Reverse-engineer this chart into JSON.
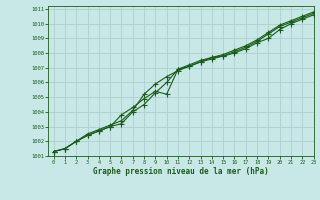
{
  "title": "Graphe pression niveau de la mer (hPa)",
  "background_color": "#c8e8e8",
  "grid_color": "#b0d0d0",
  "line_color": "#1a5c1a",
  "xlim": [
    -0.5,
    23
  ],
  "ylim": [
    1001,
    1011.2
  ],
  "xticks": [
    0,
    1,
    2,
    3,
    4,
    5,
    6,
    7,
    8,
    9,
    10,
    11,
    12,
    13,
    14,
    15,
    16,
    17,
    18,
    19,
    20,
    21,
    22,
    23
  ],
  "yticks": [
    1001,
    1002,
    1003,
    1004,
    1005,
    1006,
    1007,
    1008,
    1009,
    1010,
    1011
  ],
  "series1_x": [
    0,
    1,
    2,
    3,
    4,
    5,
    6,
    7,
    8,
    9,
    10,
    11,
    12,
    13,
    14,
    15,
    16,
    17,
    18,
    19,
    20,
    21,
    22,
    23
  ],
  "series1_y": [
    1001.3,
    1001.5,
    1002.0,
    1002.5,
    1002.8,
    1003.1,
    1003.4,
    1004.1,
    1005.2,
    1005.9,
    1006.4,
    1006.8,
    1007.1,
    1007.4,
    1007.6,
    1007.8,
    1008.1,
    1008.4,
    1008.8,
    1009.3,
    1009.8,
    1010.1,
    1010.4,
    1010.7
  ],
  "series2_x": [
    0,
    1,
    2,
    3,
    4,
    5,
    6,
    7,
    8,
    9,
    10,
    11,
    12,
    13,
    14,
    15,
    16,
    17,
    18,
    19,
    20,
    21,
    22,
    23
  ],
  "series2_y": [
    1001.3,
    1001.5,
    1002.0,
    1002.4,
    1002.7,
    1003.0,
    1003.8,
    1004.3,
    1004.9,
    1005.4,
    1005.2,
    1006.9,
    1007.1,
    1007.4,
    1007.7,
    1007.8,
    1008.0,
    1008.3,
    1008.7,
    1009.0,
    1009.6,
    1010.0,
    1010.3,
    1010.6
  ],
  "series3_x": [
    0,
    1,
    2,
    3,
    4,
    5,
    6,
    7,
    8,
    9,
    10,
    11,
    12,
    13,
    14,
    15,
    16,
    17,
    18,
    19,
    20,
    21,
    22,
    23
  ],
  "series3_y": [
    1001.3,
    1001.5,
    1002.0,
    1002.4,
    1002.7,
    1003.0,
    1003.2,
    1004.0,
    1004.5,
    1005.3,
    1006.0,
    1006.9,
    1007.2,
    1007.5,
    1007.7,
    1007.9,
    1008.2,
    1008.5,
    1008.9,
    1009.4,
    1009.9,
    1010.2,
    1010.5,
    1010.8
  ]
}
